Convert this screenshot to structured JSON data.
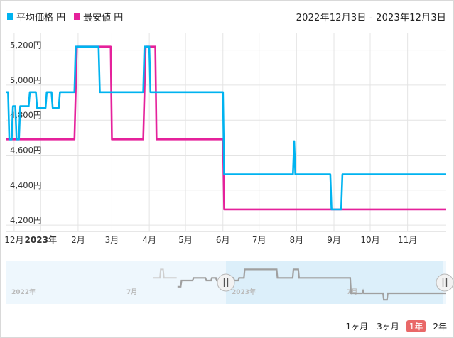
{
  "legend": [
    {
      "label": "平均価格 円",
      "color": "#00b3f0"
    },
    {
      "label": "最安値 円",
      "color": "#e5219b"
    }
  ],
  "date_range": "2022年12月3日 - 2023年12月3日",
  "range_buttons": [
    {
      "label": "1ヶ月",
      "active": false
    },
    {
      "label": "3ヶ月",
      "active": false
    },
    {
      "label": "1年",
      "active": true
    },
    {
      "label": "2年",
      "active": false
    }
  ],
  "navigator": {
    "labels": [
      "2022年",
      "7月",
      "2023年",
      "7月"
    ],
    "handle_icon": "pause-bars-icon"
  },
  "chart_data": {
    "type": "line",
    "x_start": "2022-12-03",
    "x_end": "2023-12-03",
    "ylim": [
      4180,
      5300
    ],
    "yticks": [
      4200,
      4400,
      4600,
      4800,
      5000,
      5200
    ],
    "ytick_labels": [
      "4,200円",
      "4,400円",
      "4,600円",
      "4,800円",
      "5,000円",
      "5,200円"
    ],
    "xticks": [
      {
        "date": "2022-12-10",
        "label": "12月",
        "bold": false
      },
      {
        "date": "2023-01-01",
        "label": "2023年",
        "bold": true
      },
      {
        "date": "2023-02-01",
        "label": "2月",
        "bold": false
      },
      {
        "date": "2023-03-01",
        "label": "3月",
        "bold": false
      },
      {
        "date": "2023-04-01",
        "label": "4月",
        "bold": false
      },
      {
        "date": "2023-05-01",
        "label": "5月",
        "bold": false
      },
      {
        "date": "2023-06-01",
        "label": "6月",
        "bold": false
      },
      {
        "date": "2023-07-01",
        "label": "7月",
        "bold": false
      },
      {
        "date": "2023-08-01",
        "label": "8月",
        "bold": false
      },
      {
        "date": "2023-09-01",
        "label": "9月",
        "bold": false
      },
      {
        "date": "2023-10-01",
        "label": "10月",
        "bold": false
      },
      {
        "date": "2023-11-01",
        "label": "11月",
        "bold": false
      }
    ],
    "grid": true,
    "series": [
      {
        "name": "平均価格 円",
        "color": "#00b3f0",
        "points": [
          [
            "2022-12-03",
            4960
          ],
          [
            "2022-12-05",
            4960
          ],
          [
            "2022-12-06",
            4690
          ],
          [
            "2022-12-08",
            4690
          ],
          [
            "2022-12-09",
            4880
          ],
          [
            "2022-12-11",
            4880
          ],
          [
            "2022-12-12",
            4690
          ],
          [
            "2022-12-14",
            4690
          ],
          [
            "2022-12-15",
            4880
          ],
          [
            "2022-12-22",
            4880
          ],
          [
            "2022-12-23",
            4960
          ],
          [
            "2022-12-28",
            4960
          ],
          [
            "2022-12-29",
            4870
          ],
          [
            "2023-01-05",
            4870
          ],
          [
            "2023-01-06",
            4960
          ],
          [
            "2023-01-10",
            4960
          ],
          [
            "2023-01-11",
            4870
          ],
          [
            "2023-01-16",
            4870
          ],
          [
            "2023-01-17",
            4960
          ],
          [
            "2023-01-29",
            4960
          ],
          [
            "2023-01-30",
            5220
          ],
          [
            "2023-02-18",
            5220
          ],
          [
            "2023-02-19",
            4960
          ],
          [
            "2023-03-27",
            4960
          ],
          [
            "2023-03-28",
            5220
          ],
          [
            "2023-04-01",
            5220
          ],
          [
            "2023-04-02",
            4960
          ],
          [
            "2023-06-01",
            4960
          ],
          [
            "2023-06-02",
            4490
          ],
          [
            "2023-07-29",
            4490
          ],
          [
            "2023-07-30",
            4680
          ],
          [
            "2023-07-31",
            4490
          ],
          [
            "2023-08-29",
            4490
          ],
          [
            "2023-08-30",
            4290
          ],
          [
            "2023-09-07",
            4290
          ],
          [
            "2023-09-08",
            4490
          ],
          [
            "2023-12-03",
            4490
          ]
        ]
      },
      {
        "name": "最安値 円",
        "color": "#e5219b",
        "points": [
          [
            "2022-12-03",
            4690
          ],
          [
            "2023-01-29",
            4690
          ],
          [
            "2023-01-31",
            5220
          ],
          [
            "2023-02-28",
            5220
          ],
          [
            "2023-03-01",
            4690
          ],
          [
            "2023-03-27",
            4690
          ],
          [
            "2023-03-29",
            5220
          ],
          [
            "2023-04-06",
            5220
          ],
          [
            "2023-04-07",
            4690
          ],
          [
            "2023-06-01",
            4690
          ],
          [
            "2023-06-02",
            4290
          ],
          [
            "2023-12-03",
            4290
          ]
        ]
      }
    ],
    "navigator_series": [
      [
        "2023-01-01",
        4690
      ],
      [
        "2023-01-05",
        4690
      ],
      [
        "2023-01-06",
        4880
      ],
      [
        "2023-01-20",
        4880
      ],
      [
        "2023-01-21",
        4960
      ],
      [
        "2023-02-05",
        4960
      ],
      [
        "2023-02-06",
        4880
      ],
      [
        "2023-02-12",
        4880
      ],
      [
        "2023-02-13",
        4960
      ],
      [
        "2023-02-18",
        4960
      ],
      [
        "2023-02-19",
        4880
      ],
      [
        "2023-02-28",
        4880
      ],
      [
        "2023-03-01",
        4960
      ],
      [
        "2023-03-12",
        4960
      ],
      [
        "2023-03-13",
        4880
      ],
      [
        "2023-03-18",
        4880
      ],
      [
        "2023-03-19",
        4960
      ],
      [
        "2023-03-25",
        4960
      ],
      [
        "2023-03-26",
        5220
      ],
      [
        "2023-05-05",
        5220
      ],
      [
        "2023-05-06",
        4960
      ],
      [
        "2023-05-25",
        4960
      ],
      [
        "2023-05-26",
        5220
      ],
      [
        "2023-06-01",
        5220
      ],
      [
        "2023-06-02",
        4960
      ],
      [
        "2023-08-05",
        4960
      ],
      [
        "2023-08-06",
        4490
      ],
      [
        "2023-08-20",
        4490
      ],
      [
        "2023-08-21",
        4560
      ],
      [
        "2023-08-22",
        4490
      ],
      [
        "2023-09-15",
        4490
      ],
      [
        "2023-09-16",
        4290
      ],
      [
        "2023-09-20",
        4290
      ],
      [
        "2023-09-21",
        4490
      ],
      [
        "2023-12-03",
        4490
      ]
    ]
  }
}
